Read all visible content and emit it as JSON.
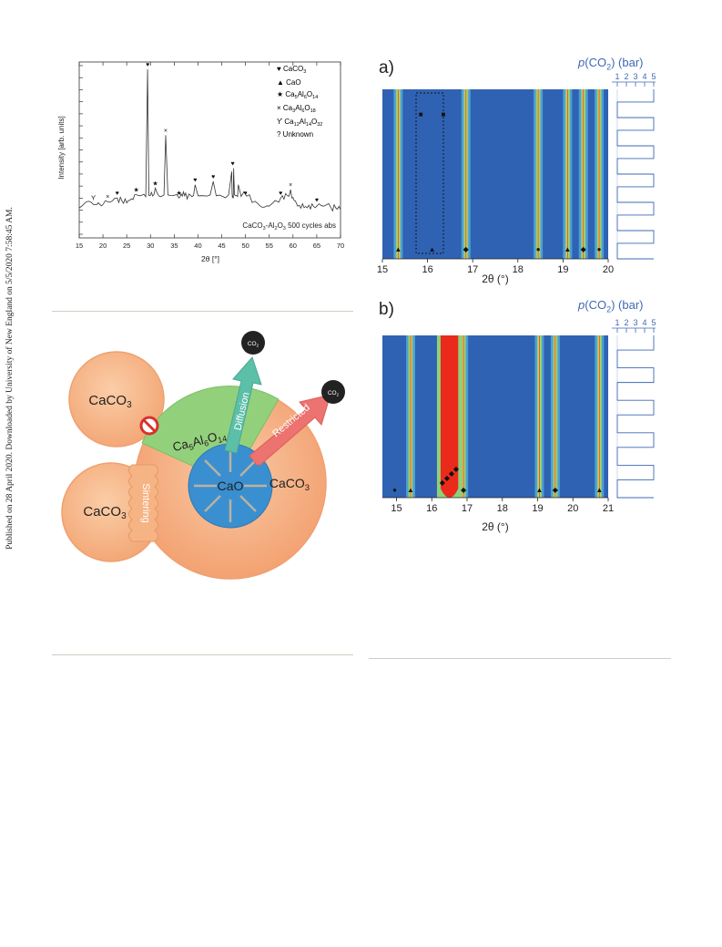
{
  "publication_note": "Published on 28 April 2020. Downloaded by University of New England on 5/5/2020 7:58:45 AM.",
  "xrd": {
    "ylabel": "Intensity [arb. units]",
    "xlabel": "2θ [°]",
    "sample_label": "CaCO3-Al2O3 500 cycles abs",
    "xticks": [
      "15",
      "20",
      "25",
      "30",
      "35",
      "40",
      "45",
      "50",
      "55",
      "60",
      "65",
      "70"
    ],
    "legend": [
      {
        "symbol": "♥",
        "text": "CaCO",
        "sub": "3",
        "rest": "",
        "sub2": ""
      },
      {
        "symbol": "▲",
        "text": "CaO",
        "sub": "",
        "rest": "",
        "sub2": ""
      },
      {
        "symbol": "★",
        "text": "Ca",
        "sub": "5",
        "rest": "Al",
        "sub2": "6O14"
      },
      {
        "symbol": "×",
        "text": "Ca",
        "sub": "3",
        "rest": "Al",
        "sub2": "6O18"
      },
      {
        "symbol": "ϒ",
        "text": "Ca",
        "sub": "12",
        "rest": "Al",
        "sub2": "14O32"
      },
      {
        "symbol": "?",
        "text": "Unknown",
        "sub": "",
        "rest": "",
        "sub2": ""
      }
    ]
  },
  "chart_data": [
    {
      "type": "line",
      "title": "",
      "xlabel": "2θ [°]",
      "ylabel": "Intensity [arb. units]",
      "xlim": [
        15,
        70
      ],
      "series": [
        {
          "name": "CaCO3-Al2O3 500 cycles abs",
          "x": [
            15,
            18,
            20,
            23,
            25,
            27,
            29.4,
            31,
            33.2,
            36,
            37.4,
            39.4,
            43.2,
            47.1,
            47.5,
            48.5,
            52,
            55,
            57.4,
            59.5,
            61,
            63,
            65,
            68,
            70
          ],
          "y": [
            0.16,
            0.18,
            0.18,
            0.22,
            0.19,
            0.24,
            1.0,
            0.28,
            0.6,
            0.22,
            0.25,
            0.3,
            0.32,
            0.38,
            0.4,
            0.3,
            0.2,
            0.17,
            0.22,
            0.27,
            0.17,
            0.16,
            0.17,
            0.16,
            0.15
          ]
        }
      ]
    },
    {
      "type": "heatmap",
      "panel": "a)",
      "xlabel": "2θ (°)",
      "xlim": [
        15,
        20
      ],
      "xticks": [
        "15",
        "16",
        "17",
        "18",
        "19",
        "20"
      ],
      "side_axis_label": "p(CO2) (bar)",
      "side_ticks": [
        "1",
        "2",
        "3",
        "4",
        "5"
      ],
      "pressure_cycles": 6,
      "bright_lines_2theta": [
        15.35,
        16.85,
        18.45,
        19.1,
        19.45,
        19.8
      ]
    },
    {
      "type": "heatmap",
      "panel": "b)",
      "xlabel": "2θ (°)",
      "xlim": [
        14.6,
        21
      ],
      "xticks": [
        "15",
        "16",
        "17",
        "18",
        "19",
        "20",
        "21"
      ],
      "side_axis_label": "p(CO2) (bar)",
      "side_ticks": [
        "1",
        "2",
        "3",
        "4",
        "5"
      ],
      "pressure_cycles": 5,
      "bright_lines_2theta": [
        15.4,
        16.55,
        16.9,
        19.05,
        19.5,
        20.75
      ]
    }
  ],
  "panel_a": {
    "label": "a)",
    "axis_title": "(CO",
    "axis_tail": ") (bar)",
    "p": "p",
    "sub": "2",
    "xlabel": "2θ (°)"
  },
  "panel_b": {
    "label": "b)",
    "axis_title": "(CO",
    "axis_tail": ") (bar)",
    "p": "p",
    "sub": "2",
    "xlabel": "2θ (°)"
  },
  "schematic": {
    "caco3_top": "CaCO",
    "caco3_bottom": "CaCO",
    "caco3_main": "CaCO",
    "three": "3",
    "cao": "CaO",
    "binder": "Ca",
    "binder_5": "5",
    "binder_al": "Al",
    "binder_6": "6",
    "binder_o": "O",
    "binder_14": "14",
    "co2": "CO",
    "co2_sub": "2",
    "diffusion": "Diffusion",
    "restricted": "Restricted",
    "sintering": "Sintering"
  },
  "colors": {
    "caco3": "#f8b98c",
    "binder": "#8fce7a",
    "cao": "#3b8fd0",
    "arrow_diffusion": "#5cbfa8",
    "arrow_restricted": "#ec7370",
    "axis_blue": "#3f69b4"
  }
}
